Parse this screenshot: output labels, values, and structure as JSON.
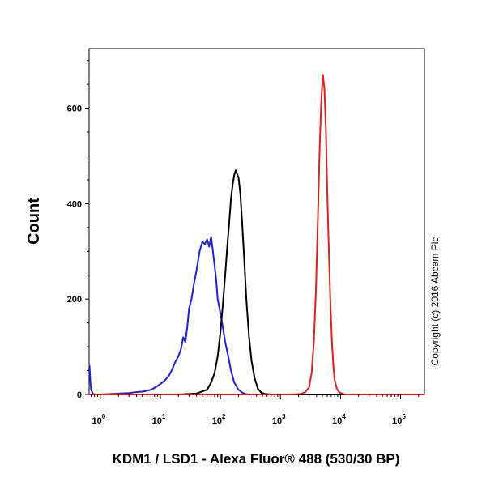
{
  "chart_data": {
    "type": "line",
    "xlabel": "KDM1 / LSD1 - Alexa Fluor® 488 (530/30 BP)",
    "ylabel": "Count",
    "x_scale": "log",
    "xlim": [
      0.65,
      250000
    ],
    "ylim": [
      0,
      725
    ],
    "y_ticks": [
      0,
      200,
      400,
      600
    ],
    "x_ticks": [
      {
        "value": 1,
        "base": "10",
        "exp": "0"
      },
      {
        "value": 10,
        "base": "10",
        "exp": "1"
      },
      {
        "value": 100,
        "base": "10",
        "exp": "2"
      },
      {
        "value": 1000,
        "base": "10",
        "exp": "3"
      },
      {
        "value": 10000,
        "base": "10",
        "exp": "4"
      },
      {
        "value": 100000,
        "base": "10",
        "exp": "5"
      }
    ],
    "series": [
      {
        "color": "#1f1fd6",
        "x": [
          0.65,
          0.66,
          0.68,
          0.7,
          0.75,
          0.8,
          1,
          2,
          3,
          4,
          5,
          6,
          7,
          8,
          9,
          10,
          12,
          14,
          16,
          18,
          20,
          22,
          24,
          26,
          28,
          30,
          33,
          36,
          40,
          45,
          50,
          55,
          60,
          65,
          70,
          75,
          80,
          85,
          90,
          100,
          110,
          120,
          135,
          150,
          170,
          200,
          230,
          260,
          300,
          350,
          400,
          500,
          1000,
          250000
        ],
        "y": [
          50,
          60,
          30,
          10,
          2,
          0,
          0,
          2,
          3,
          5,
          6,
          8,
          10,
          14,
          18,
          22,
          30,
          40,
          55,
          70,
          80,
          95,
          120,
          110,
          140,
          180,
          200,
          230,
          260,
          300,
          320,
          315,
          325,
          310,
          330,
          300,
          270,
          240,
          200,
          170,
          140,
          110,
          80,
          50,
          25,
          10,
          4,
          1,
          0,
          0,
          0,
          0,
          0,
          0
        ]
      },
      {
        "color": "#000000",
        "x": [
          0.65,
          20,
          40,
          60,
          70,
          80,
          90,
          100,
          110,
          120,
          130,
          140,
          150,
          160,
          170,
          180,
          190,
          200,
          215,
          230,
          250,
          270,
          300,
          330,
          370,
          420,
          480,
          550,
          700,
          1000,
          250000
        ],
        "y": [
          0,
          0,
          2,
          10,
          25,
          45,
          80,
          130,
          190,
          250,
          310,
          360,
          410,
          440,
          460,
          470,
          462,
          455,
          420,
          360,
          280,
          200,
          120,
          70,
          35,
          12,
          4,
          1,
          0,
          0,
          0
        ]
      },
      {
        "color": "#e02020",
        "x": [
          0.65,
          1500,
          2200,
          2600,
          3000,
          3300,
          3600,
          3900,
          4200,
          4500,
          4800,
          5100,
          5400,
          5700,
          6000,
          6400,
          6800,
          7200,
          7600,
          8000,
          8700,
          9500,
          10500,
          12000,
          15000,
          250000
        ],
        "y": [
          0,
          0,
          1,
          5,
          15,
          45,
          110,
          220,
          370,
          520,
          620,
          670,
          640,
          560,
          430,
          300,
          190,
          110,
          60,
          30,
          12,
          5,
          2,
          0,
          0,
          0
        ]
      }
    ]
  },
  "copyright": "Copyright (c) 2016 Abcam Plc"
}
